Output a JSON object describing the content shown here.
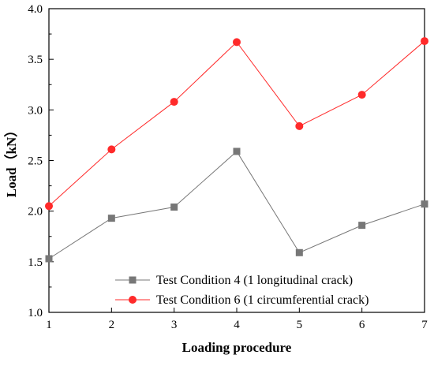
{
  "chart_data": {
    "type": "line",
    "xlabel": "Loading procedure",
    "ylabel": "Load（kN）",
    "xlim": [
      1,
      7
    ],
    "ylim": [
      1.0,
      4.0
    ],
    "x": [
      1,
      2,
      3,
      4,
      5,
      6,
      7
    ],
    "x_ticks": [
      "1",
      "2",
      "3",
      "4",
      "5",
      "6",
      "7"
    ],
    "y_ticks": [
      "1.0",
      "1.5",
      "2.0",
      "2.5",
      "3.0",
      "3.5",
      "4.0"
    ],
    "grid": false,
    "legend_position": "bottom-right",
    "series": [
      {
        "name": "Test Condition 4 (1 longitudinal crack)",
        "color": "#777777",
        "marker": "square",
        "values": [
          1.53,
          1.93,
          2.04,
          2.59,
          1.59,
          1.86,
          2.07
        ]
      },
      {
        "name": "Test Condition 6 (1 circumferential crack)",
        "color": "#ff2a2a",
        "marker": "circle",
        "values": [
          2.05,
          2.61,
          3.08,
          3.67,
          2.84,
          3.15,
          3.68
        ]
      }
    ]
  }
}
